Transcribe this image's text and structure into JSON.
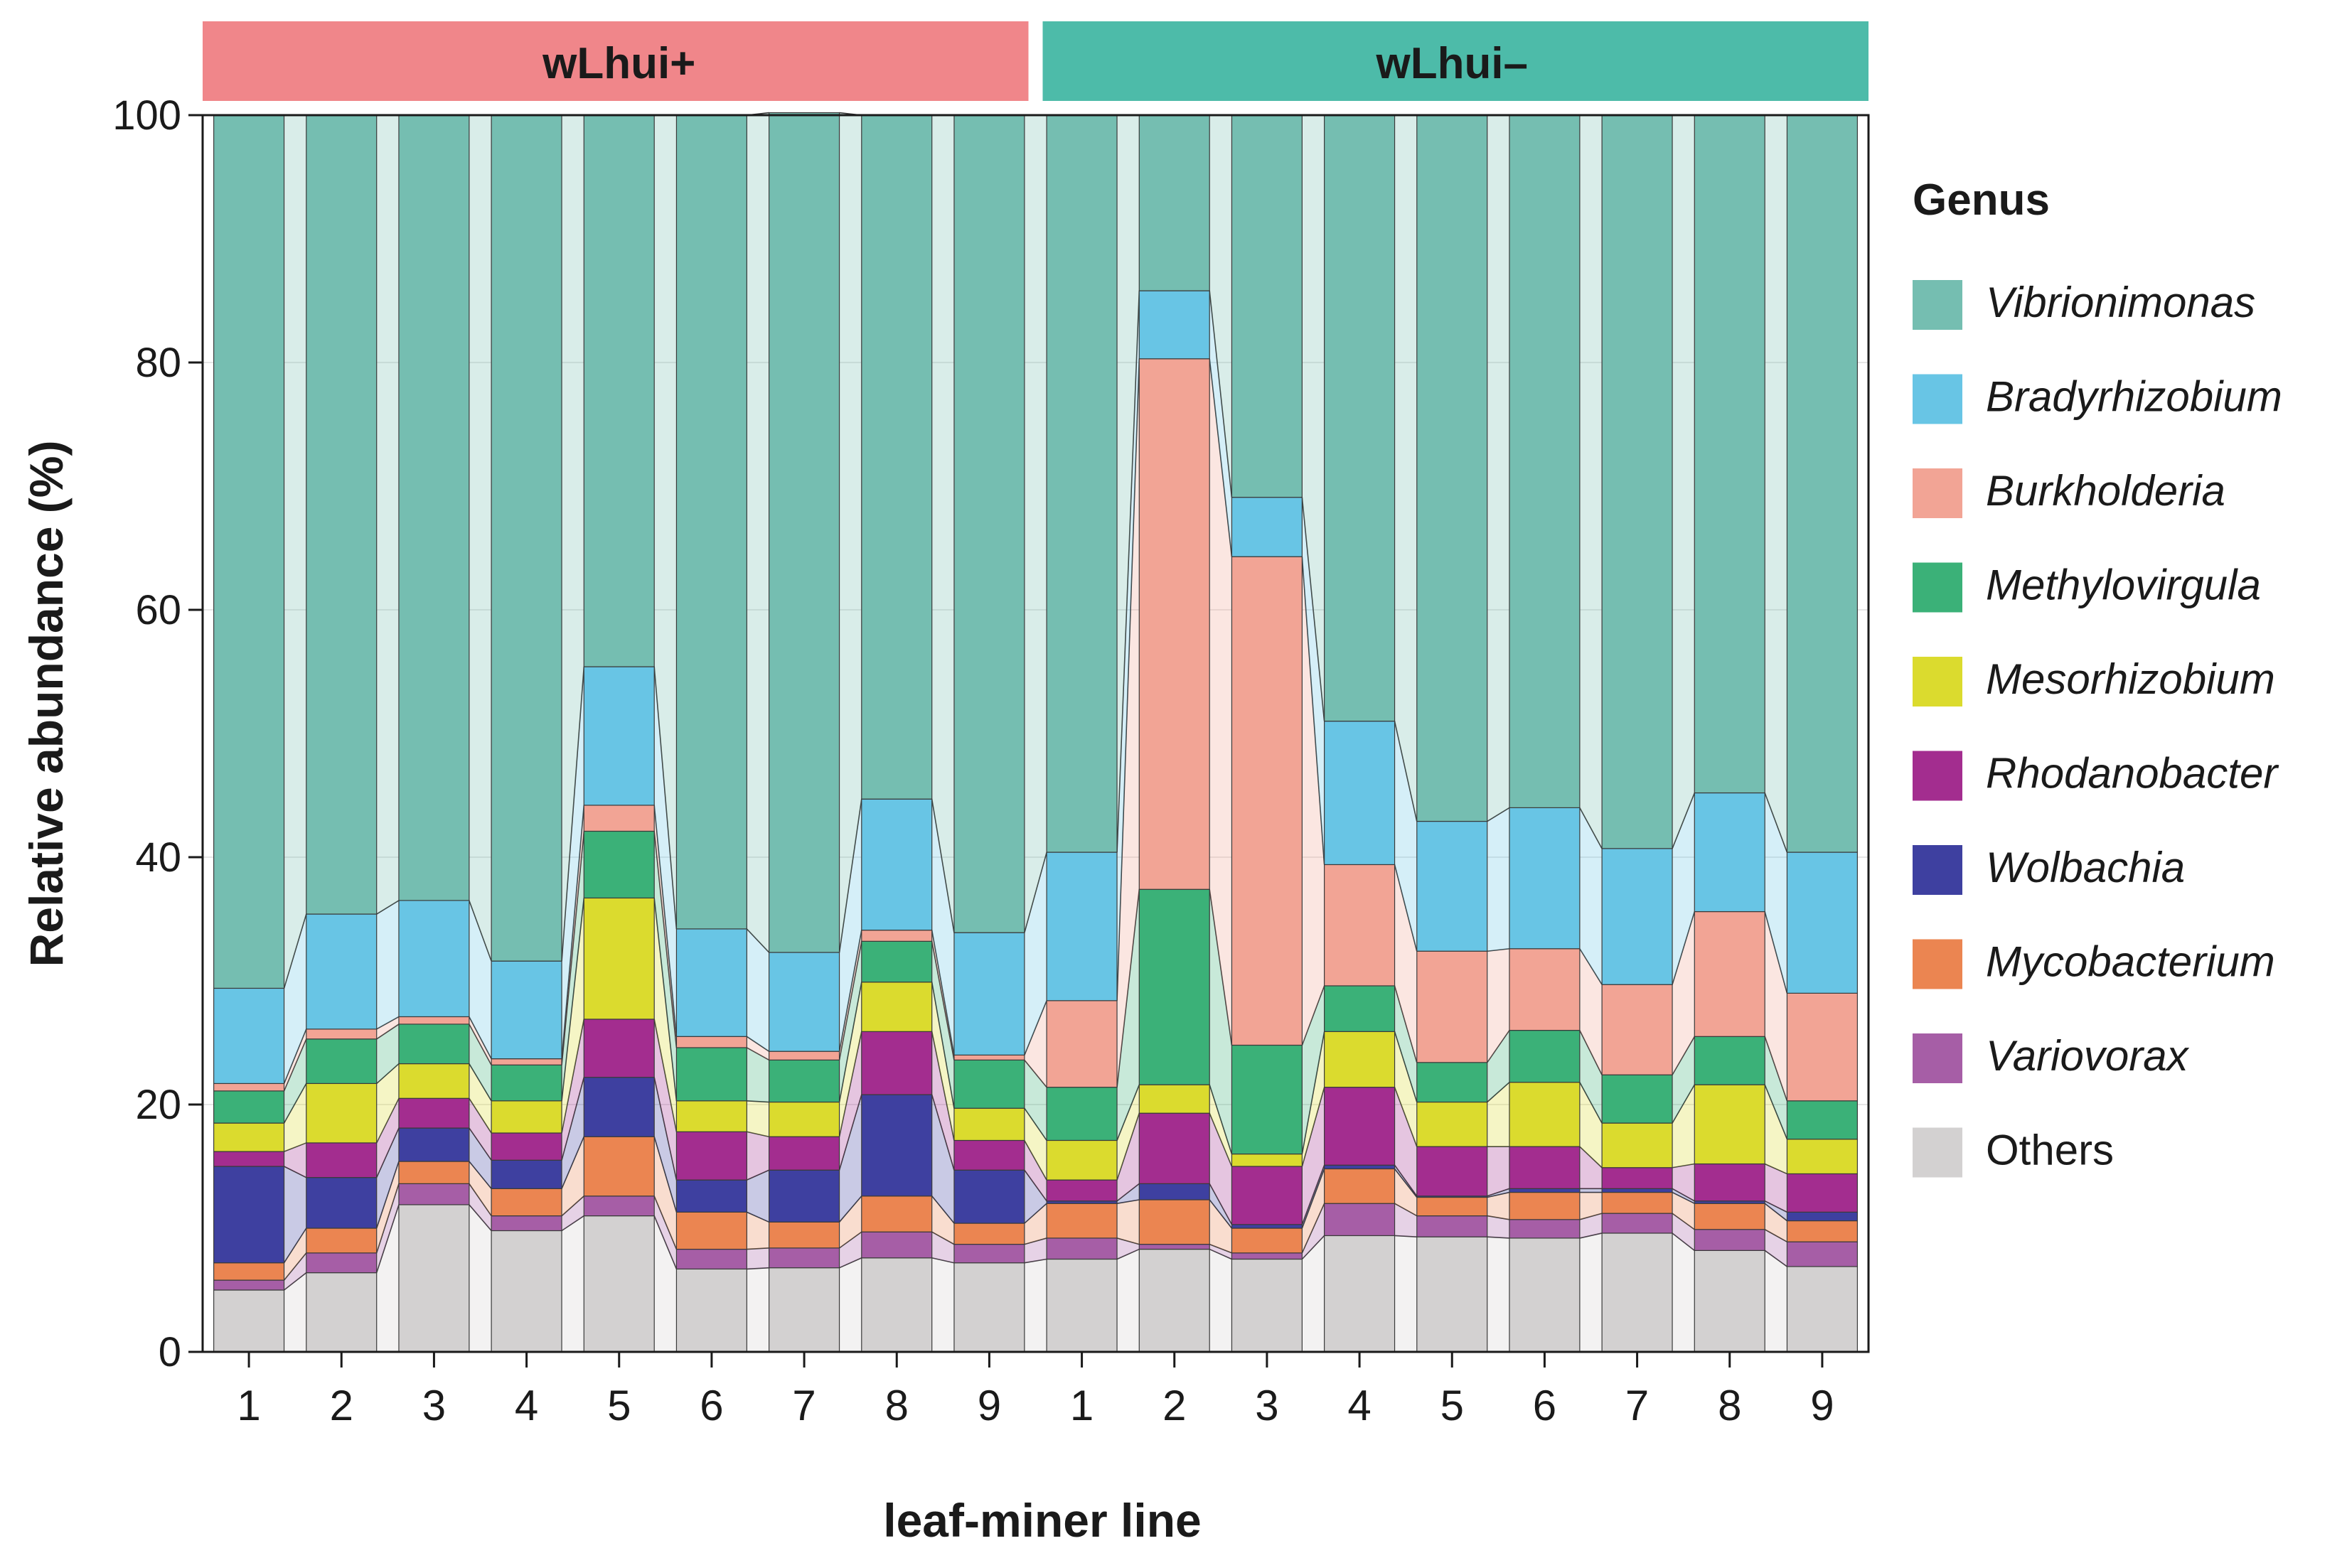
{
  "chart_data": {
    "type": "stacked-bar",
    "xlabel": "leaf-miner line",
    "ylabel": "Relative abundance (%)",
    "ylim": [
      0,
      100
    ],
    "yticks": [
      0,
      20,
      40,
      60,
      80,
      100
    ],
    "groups": [
      {
        "label": "wLhui+",
        "color": "#F0868A",
        "categories": [
          "1",
          "2",
          "3",
          "4",
          "5",
          "6",
          "7",
          "8",
          "9"
        ]
      },
      {
        "label": "wLhui–",
        "color": "#4DBBA9",
        "categories": [
          "1",
          "2",
          "3",
          "4",
          "5",
          "6",
          "7",
          "8",
          "9"
        ]
      }
    ],
    "legend_title": "Genus",
    "series": [
      {
        "name": "Others",
        "color": "#D3D1D1",
        "values": [
          5.0,
          6.4,
          11.9,
          9.8,
          11.0,
          6.7,
          6.8,
          7.6,
          7.2,
          7.5,
          8.3,
          7.5,
          9.4,
          9.3,
          9.2,
          9.6,
          8.2,
          6.9
        ]
      },
      {
        "name": "Variovorax",
        "color": "#A65EA6",
        "values": [
          0.8,
          1.6,
          1.7,
          1.2,
          1.6,
          1.6,
          1.6,
          2.1,
          1.5,
          1.7,
          0.4,
          0.5,
          2.6,
          1.7,
          1.5,
          1.6,
          1.7,
          2.0
        ]
      },
      {
        "name": "Mycobacterium",
        "color": "#EB8551",
        "values": [
          1.4,
          2.0,
          1.8,
          2.2,
          4.8,
          3.0,
          2.1,
          2.9,
          1.7,
          2.8,
          3.6,
          2.0,
          2.8,
          1.5,
          2.2,
          1.7,
          2.1,
          1.7
        ]
      },
      {
        "name": "Wolbachia",
        "color": "#3E40A0",
        "values": [
          7.8,
          4.1,
          2.7,
          2.3,
          4.8,
          2.6,
          4.2,
          8.2,
          4.3,
          0.2,
          1.3,
          0.3,
          0.3,
          0.1,
          0.3,
          0.3,
          0.2,
          0.7
        ]
      },
      {
        "name": "Rhodanobacter",
        "color": "#A32D8F",
        "values": [
          1.2,
          2.8,
          2.4,
          2.2,
          4.7,
          3.9,
          2.7,
          5.1,
          2.4,
          1.7,
          5.7,
          4.7,
          6.3,
          4.0,
          3.4,
          1.7,
          3.0,
          3.1
        ]
      },
      {
        "name": "Mesorhizobium",
        "color": "#DBDB2E",
        "values": [
          2.3,
          4.8,
          2.8,
          2.6,
          9.8,
          2.5,
          2.8,
          4.0,
          2.6,
          3.2,
          2.3,
          1.0,
          4.5,
          3.6,
          5.2,
          3.6,
          6.4,
          2.8
        ]
      },
      {
        "name": "Methylovirgula",
        "color": "#3BB178",
        "values": [
          2.6,
          3.6,
          3.2,
          2.9,
          5.4,
          4.3,
          3.4,
          3.3,
          3.9,
          4.3,
          15.8,
          8.8,
          3.7,
          3.2,
          4.2,
          3.9,
          3.9,
          3.1
        ]
      },
      {
        "name": "Burkholderia",
        "color": "#F2A495",
        "values": [
          0.6,
          0.8,
          0.6,
          0.5,
          2.1,
          0.9,
          0.7,
          0.9,
          0.4,
          7.0,
          42.9,
          39.5,
          9.8,
          9.0,
          6.6,
          7.3,
          10.1,
          8.7
        ]
      },
      {
        "name": "Bradyrhizobium",
        "color": "#68C5E5",
        "values": [
          7.7,
          9.3,
          9.4,
          7.9,
          11.2,
          8.7,
          8.0,
          10.6,
          9.9,
          12.0,
          5.5,
          4.8,
          11.6,
          10.5,
          11.4,
          11.0,
          9.6,
          11.4
        ]
      },
      {
        "name": "Vibrionimonas",
        "color": "#75BEB1",
        "values": [
          70.6,
          64.6,
          63.5,
          68.4,
          44.6,
          65.8,
          67.9,
          55.3,
          66.1,
          59.6,
          14.2,
          30.9,
          49.0,
          57.1,
          56.0,
          59.3,
          54.8,
          59.6
        ]
      }
    ],
    "legend_order": [
      "Vibrionimonas",
      "Bradyrhizobium",
      "Burkholderia",
      "Methylovirgula",
      "Mesorhizobium",
      "Rhodanobacter",
      "Wolbachia",
      "Mycobacterium",
      "Variovorax",
      "Others"
    ],
    "legend_italic": [
      true,
      true,
      true,
      true,
      true,
      true,
      true,
      true,
      true,
      false
    ]
  }
}
